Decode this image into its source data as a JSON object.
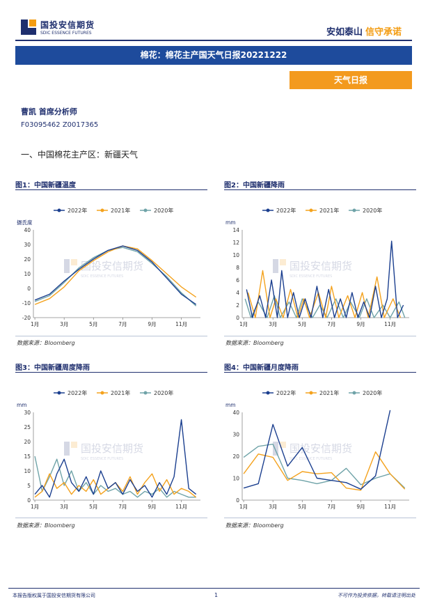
{
  "header": {
    "logo_cn": "国投安信期货",
    "logo_en": "SDIC ESSENCE FUTURES",
    "slogan_part1": "安如泰山",
    "slogan_part2": "信守承诺"
  },
  "title": "棉花：棉花主产国天气日报20221222",
  "tag": "天气日报",
  "author": "曹凯  首席分析师",
  "license": "F03095462  Z0017365",
  "section_heading": "一、中国棉花主产区：新疆天气",
  "watermark": {
    "cn": "国投安信期货",
    "en": "SDIC ESSENCE FUTURES"
  },
  "colors": {
    "brand_navy": "#1f2f6e",
    "title_bar": "#1e4b9c",
    "tag_orange": "#f39a1e",
    "series_2022": "#1b3f8f",
    "series_2021": "#f4a21d",
    "series_2020": "#6fa3a8"
  },
  "figures": [
    {
      "title": "图1：中国新疆温度",
      "source": "数据来源：Bloomberg"
    },
    {
      "title": "图2：中国新疆降雨",
      "source": "数据来源：Bloomberg"
    },
    {
      "title": "图3：中国新疆周度降雨",
      "source": "数据来源：Bloomberg"
    },
    {
      "title": "图4：中国新疆月度降雨",
      "source": "数据来源：Bloomberg"
    }
  ],
  "chart_data": [
    {
      "type": "line",
      "ylabel": "摄氏度",
      "ylim": [
        -20,
        40
      ],
      "yticks": [
        -20,
        -10,
        0,
        10,
        20,
        30,
        40
      ],
      "xticks": [
        "1月",
        "3月",
        "5月",
        "7月",
        "9月",
        "11月"
      ],
      "legend_position": "top",
      "series": [
        {
          "name": "2022年",
          "key": "series_2022",
          "x": [
            1,
            2,
            3,
            4,
            5,
            6,
            7,
            8,
            9,
            10,
            11,
            12
          ],
          "values": [
            -8,
            -4,
            5,
            13,
            20,
            26,
            29,
            26,
            18,
            7,
            -4,
            -11
          ]
        },
        {
          "name": "2021年",
          "key": "series_2021",
          "x": [
            1,
            2,
            3,
            4,
            5,
            6,
            7,
            8,
            9,
            10,
            11,
            12
          ],
          "values": [
            -11,
            -7,
            1,
            12,
            19,
            25,
            29,
            27,
            19,
            10,
            1,
            -6
          ]
        },
        {
          "name": "2020年",
          "key": "series_2020",
          "x": [
            1,
            2,
            3,
            4,
            5,
            6,
            7,
            8,
            9,
            10,
            11,
            12
          ],
          "values": [
            -9,
            -5,
            4,
            14,
            21,
            26,
            28,
            25,
            17,
            8,
            -3,
            -12
          ]
        }
      ]
    },
    {
      "type": "line",
      "ylabel": "mm",
      "ylim": [
        0,
        14
      ],
      "yticks": [
        0,
        2,
        4,
        6,
        8,
        10,
        12,
        14
      ],
      "xticks": [
        "1月",
        "3月",
        "5月",
        "7月",
        "9月",
        "11月"
      ],
      "legend_position": "top",
      "series": [
        {
          "name": "2022年",
          "key": "series_2022",
          "x": [
            1.2,
            1.6,
            2.1,
            2.5,
            2.9,
            3.3,
            3.6,
            4.0,
            4.4,
            4.8,
            5.2,
            5.6,
            6.0,
            6.4,
            6.8,
            7.2,
            7.6,
            8.0,
            8.4,
            8.8,
            9.2,
            9.6,
            10.0,
            10.4,
            10.8,
            11.1,
            11.5,
            11.9
          ],
          "values": [
            4.5,
            0,
            3.5,
            0,
            6,
            0,
            7.5,
            0,
            4,
            0,
            3,
            0,
            5,
            0,
            4.5,
            0,
            3,
            0,
            4,
            0,
            2.5,
            0,
            5,
            0,
            3,
            12.2,
            0,
            2
          ]
        },
        {
          "name": "2021年",
          "key": "series_2021",
          "x": [
            1.3,
            1.8,
            2.3,
            2.8,
            3.2,
            3.7,
            4.2,
            4.7,
            5.1,
            5.5,
            6.1,
            6.6,
            7.0,
            7.5,
            8.1,
            8.6,
            9.1,
            9.5,
            10.1,
            10.6,
            11.2,
            11.7
          ],
          "values": [
            4,
            0,
            7.5,
            0,
            3,
            0,
            4.5,
            0,
            3,
            0,
            4,
            0,
            5,
            0,
            3.5,
            0,
            4,
            0,
            6.5,
            0,
            3,
            0
          ]
        },
        {
          "name": "2020年",
          "key": "series_2020",
          "x": [
            1.1,
            1.5,
            2.0,
            2.6,
            3.1,
            3.5,
            4.1,
            4.6,
            5.0,
            5.7,
            6.2,
            6.7,
            7.3,
            7.8,
            8.3,
            8.9,
            9.4,
            9.9,
            10.5,
            11.0,
            11.6,
            12.0
          ],
          "values": [
            3,
            0,
            2.5,
            0,
            3.5,
            0,
            2.5,
            0,
            3,
            0,
            2,
            0,
            3,
            0,
            2.5,
            0,
            3,
            0,
            2,
            0,
            2.5,
            0
          ]
        }
      ]
    },
    {
      "type": "line",
      "ylabel": "mm",
      "ylim": [
        0,
        30
      ],
      "yticks": [
        0,
        5,
        10,
        15,
        20,
        25,
        30
      ],
      "xticks": [
        "1月",
        "3月",
        "5月",
        "7月",
        "9月",
        "11月"
      ],
      "legend_position": "top",
      "series": [
        {
          "name": "2022年",
          "key": "series_2022",
          "x": [
            1,
            1.5,
            2,
            2.5,
            3,
            3.5,
            4,
            4.5,
            5,
            5.5,
            6,
            6.5,
            7,
            7.5,
            8,
            8.5,
            9,
            9.5,
            10,
            10.5,
            11,
            11.5,
            12
          ],
          "values": [
            2,
            5,
            1,
            9,
            14,
            6,
            3,
            8,
            2,
            10,
            4,
            6,
            2,
            7,
            3,
            5,
            1,
            6,
            2,
            8,
            27.5,
            4,
            2
          ]
        },
        {
          "name": "2021年",
          "key": "series_2021",
          "x": [
            1,
            1.5,
            2,
            2.5,
            3,
            3.5,
            4,
            4.5,
            5,
            5.5,
            6,
            6.5,
            7,
            7.5,
            8,
            8.5,
            9,
            9.5,
            10,
            10.5,
            11,
            11.5,
            12
          ],
          "values": [
            1,
            3,
            9,
            4,
            6,
            2,
            5,
            3,
            7,
            2,
            4,
            6,
            3,
            8,
            2,
            6,
            9,
            3,
            7,
            2,
            4,
            3,
            1
          ]
        },
        {
          "name": "2020年",
          "key": "series_2020",
          "x": [
            1,
            1.5,
            2,
            2.5,
            3,
            3.5,
            4,
            4.5,
            5,
            5.5,
            6,
            6.5,
            7,
            7.5,
            8,
            8.5,
            9,
            9.5,
            10,
            10.5,
            11,
            11.5,
            12
          ],
          "values": [
            15,
            3,
            8,
            14,
            5,
            10,
            3,
            6,
            2,
            5,
            3,
            4,
            2,
            3,
            1,
            3,
            2,
            4,
            1,
            3,
            2,
            1,
            1
          ]
        }
      ]
    },
    {
      "type": "line",
      "ylabel": "mm",
      "ylim": [
        0,
        40
      ],
      "yticks": [
        0,
        10,
        20,
        30,
        40
      ],
      "xticks": [
        "1月",
        "3月",
        "5月",
        "7月",
        "9月",
        "11月"
      ],
      "legend_position": "top",
      "series": [
        {
          "name": "2022年",
          "key": "series_2022",
          "x": [
            1,
            2,
            3,
            4,
            5,
            6,
            7,
            8,
            9,
            10,
            11
          ],
          "values": [
            5.5,
            7.5,
            34.5,
            15.5,
            24,
            10,
            9,
            8,
            5,
            11,
            41
          ]
        },
        {
          "name": "2021年",
          "key": "series_2021",
          "x": [
            1,
            2,
            3,
            4,
            5,
            6,
            7,
            8,
            9,
            10,
            11,
            12
          ],
          "values": [
            12,
            21,
            19.5,
            9,
            13,
            12,
            12.5,
            5.5,
            4.5,
            22,
            12,
            5
          ]
        },
        {
          "name": "2020年",
          "key": "series_2020",
          "x": [
            1,
            2,
            3,
            4,
            5,
            6,
            7,
            8,
            9,
            10,
            11,
            12
          ],
          "values": [
            19.5,
            24.5,
            25.5,
            10,
            9,
            7.5,
            9,
            14.5,
            7,
            10,
            12,
            5.5
          ]
        }
      ]
    }
  ],
  "footer": {
    "copyright": "本报告版权属于国投安信期货有限公司",
    "page": "1",
    "disclaimer": "不可作为投资依据，转载请注明出处"
  }
}
